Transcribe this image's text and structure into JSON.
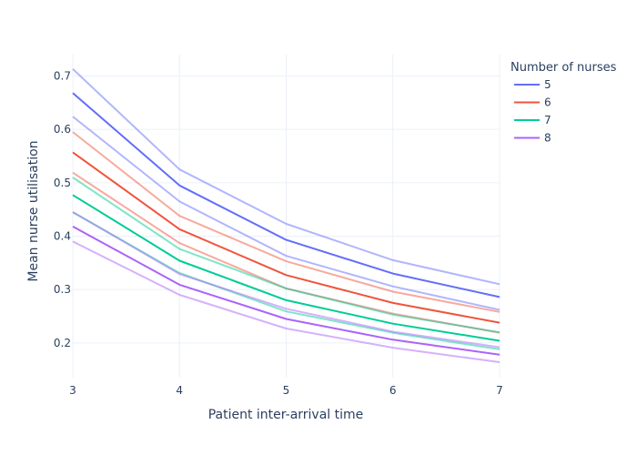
{
  "chart_data": {
    "type": "line",
    "title": "",
    "xlabel": "Patient inter-arrival time",
    "ylabel": "Mean nurse utilisation",
    "x": [
      3,
      4,
      5,
      6,
      7
    ],
    "xlim": [
      3,
      7
    ],
    "ylim": [
      0.135,
      0.74
    ],
    "x_ticks": [
      "3",
      "4",
      "5",
      "6",
      "7"
    ],
    "y_ticks": [
      "0.2",
      "0.3",
      "0.4",
      "0.5",
      "0.6",
      "0.7"
    ],
    "grid": true,
    "legend": {
      "title": "Number of nurses",
      "placement": "top-right"
    },
    "series": [
      {
        "name": "5",
        "color": "#636efa",
        "values": [
          0.668,
          0.495,
          0.393,
          0.33,
          0.286
        ],
        "upper": [
          0.713,
          0.525,
          0.423,
          0.355,
          0.31
        ],
        "lower": [
          0.624,
          0.465,
          0.363,
          0.306,
          0.262
        ]
      },
      {
        "name": "6",
        "color": "#ef553b",
        "values": [
          0.557,
          0.413,
          0.327,
          0.275,
          0.238
        ],
        "upper": [
          0.595,
          0.438,
          0.353,
          0.296,
          0.258
        ],
        "lower": [
          0.519,
          0.387,
          0.302,
          0.255,
          0.219
        ]
      },
      {
        "name": "7",
        "color": "#00cc96",
        "values": [
          0.477,
          0.354,
          0.28,
          0.236,
          0.204
        ],
        "upper": [
          0.51,
          0.376,
          0.302,
          0.253,
          0.22
        ],
        "lower": [
          0.445,
          0.331,
          0.259,
          0.219,
          0.188
        ]
      },
      {
        "name": "8",
        "color": "#ab63fa",
        "values": [
          0.418,
          0.309,
          0.245,
          0.206,
          0.178
        ],
        "upper": [
          0.445,
          0.329,
          0.264,
          0.221,
          0.192
        ],
        "lower": [
          0.39,
          0.29,
          0.227,
          0.191,
          0.164
        ]
      }
    ]
  }
}
